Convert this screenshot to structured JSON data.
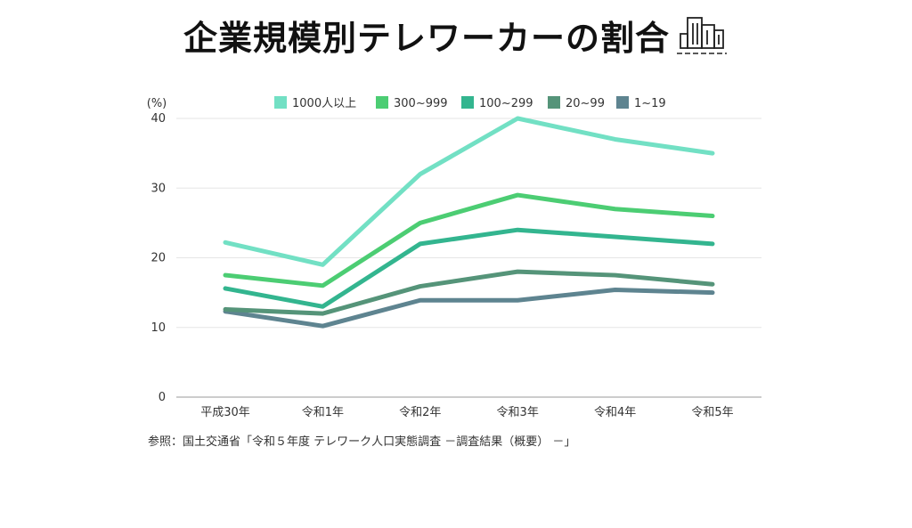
{
  "title": "企業規模別テレワーカーの割合",
  "icon": "building-icon",
  "source": "参照：国土交通省「令和５年度 テレワーク人口実態調査 －調査結果（概要） －」",
  "chart_data": {
    "type": "line",
    "unit_label": "(%)",
    "categories": [
      "平成30年",
      "令和1年",
      "令和2年",
      "令和3年",
      "令和4年",
      "令和5年"
    ],
    "ylim": [
      0,
      40
    ],
    "yticks": [
      0,
      10,
      20,
      30,
      40
    ],
    "grid": true,
    "legend_position": "top",
    "series": [
      {
        "name": "1000人以上",
        "color": "#72e0c4",
        "values": [
          22.2,
          19.0,
          32.0,
          40.0,
          37.0,
          35.0
        ]
      },
      {
        "name": "300~999",
        "color": "#4ccd73",
        "values": [
          17.5,
          16.0,
          25.0,
          29.0,
          27.0,
          26.0
        ]
      },
      {
        "name": "100~299",
        "color": "#33b58f",
        "values": [
          15.6,
          13.0,
          22.0,
          24.0,
          23.0,
          22.0
        ]
      },
      {
        "name": "20~99",
        "color": "#559479",
        "values": [
          12.6,
          12.0,
          15.9,
          18.0,
          17.5,
          16.2
        ]
      },
      {
        "name": "1~19",
        "color": "#5e8490",
        "values": [
          12.3,
          10.2,
          13.9,
          13.9,
          15.4,
          15.0
        ]
      }
    ]
  }
}
